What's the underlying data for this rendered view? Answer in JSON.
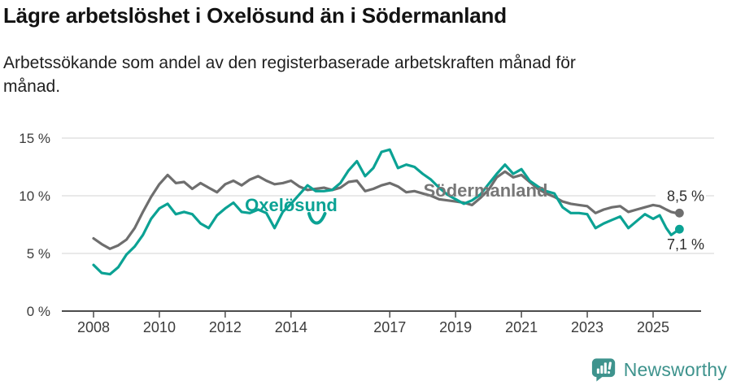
{
  "header": {
    "title": "Lägre arbetslöshet i Oxelösund än i Södermanland",
    "subtitle_line1": "Arbetssökande som andel av den registerbaserade arbetskraften månad för",
    "subtitle_line2": "månad."
  },
  "chart_data": {
    "type": "line",
    "title": "Lägre arbetslöshet i Oxelösund än i Södermanland",
    "subtitle": "Arbetssökande som andel av den registerbaserade arbetskraften månad för månad.",
    "x_unit": "year",
    "y_unit": "percent",
    "xlim": [
      2007.2,
      2026.6
    ],
    "ylim": [
      0,
      15.8
    ],
    "grid": "horizontal",
    "legend": "inline-line-labels",
    "x": [
      2008,
      2008.25,
      2008.5,
      2008.75,
      2009,
      2009.25,
      2009.5,
      2009.75,
      2010,
      2010.25,
      2010.5,
      2010.75,
      2011,
      2011.25,
      2011.5,
      2011.75,
      2012,
      2012.25,
      2012.5,
      2012.75,
      2013,
      2013.25,
      2013.5,
      2013.75,
      2014,
      2014.25,
      2014.5,
      2014.75,
      2015,
      2015.25,
      2015.5,
      2015.75,
      2016,
      2016.25,
      2016.5,
      2016.75,
      2017,
      2017.25,
      2017.5,
      2017.75,
      2018,
      2018.25,
      2018.5,
      2018.75,
      2019,
      2019.25,
      2019.5,
      2019.75,
      2020,
      2020.25,
      2020.5,
      2020.75,
      2021,
      2021.25,
      2021.5,
      2021.75,
      2022,
      2022.25,
      2022.5,
      2022.75,
      2023,
      2023.25,
      2023.5,
      2023.75,
      2024,
      2024.25,
      2024.5,
      2024.75,
      2025,
      2025.2,
      2025.4,
      2025.55,
      2025.7,
      2025.8
    ],
    "series": [
      {
        "name": "Oxelösund",
        "color": "#0BA294",
        "label_color": "#0BA294",
        "end_label": "7,1 %",
        "end_value": 7.1,
        "values": [
          4.0,
          3.3,
          3.2,
          3.8,
          4.9,
          5.6,
          6.6,
          8.0,
          8.9,
          9.3,
          8.4,
          8.6,
          8.4,
          7.6,
          7.2,
          8.3,
          8.9,
          9.4,
          8.6,
          8.5,
          8.8,
          8.5,
          7.2,
          8.6,
          9.3,
          10.1,
          10.9,
          10.4,
          10.4,
          10.5,
          11.1,
          12.2,
          13.0,
          11.7,
          12.4,
          13.8,
          14.0,
          12.4,
          12.7,
          12.5,
          11.9,
          11.4,
          10.7,
          10.1,
          9.7,
          9.3,
          9.6,
          10.1,
          11.0,
          11.9,
          12.7,
          11.9,
          12.3,
          11.3,
          10.8,
          10.4,
          10.2,
          9.0,
          8.5,
          8.5,
          8.4,
          7.2,
          7.6,
          7.9,
          8.2,
          7.2,
          7.8,
          8.4,
          8.0,
          8.3,
          7.2,
          6.6,
          6.9,
          7.1
        ]
      },
      {
        "name": "Södermanland",
        "color": "#6E6E6E",
        "label_color": "#777777",
        "end_label": "8,5 %",
        "end_value": 8.5,
        "values": [
          6.3,
          5.8,
          5.4,
          5.7,
          6.2,
          7.2,
          8.6,
          9.9,
          11.0,
          11.8,
          11.1,
          11.2,
          10.6,
          11.1,
          10.7,
          10.3,
          11.0,
          11.3,
          10.9,
          11.4,
          11.7,
          11.3,
          11.0,
          11.1,
          11.3,
          10.8,
          10.5,
          10.6,
          10.7,
          10.5,
          10.7,
          11.2,
          11.3,
          10.4,
          10.6,
          10.9,
          11.1,
          10.8,
          10.3,
          10.4,
          10.2,
          10.0,
          9.7,
          9.6,
          9.5,
          9.4,
          9.2,
          9.8,
          10.5,
          11.6,
          12.1,
          11.6,
          11.8,
          11.2,
          10.6,
          10.2,
          9.9,
          9.5,
          9.3,
          9.2,
          9.1,
          8.5,
          8.8,
          9.0,
          9.1,
          8.6,
          8.8,
          9.0,
          9.2,
          9.1,
          8.8,
          8.6,
          8.5,
          8.5
        ]
      }
    ],
    "yticks": [
      {
        "v": 0,
        "label": "0 %"
      },
      {
        "v": 5,
        "label": "5 %"
      },
      {
        "v": 10,
        "label": "10 %"
      },
      {
        "v": 15,
        "label": "15 %"
      }
    ],
    "xticks": [
      {
        "v": 2008,
        "label": "2008"
      },
      {
        "v": 2010,
        "label": "2010"
      },
      {
        "v": 2012,
        "label": "2012"
      },
      {
        "v": 2014,
        "label": "2014"
      },
      {
        "v": 2017,
        "label": "2017"
      },
      {
        "v": 2019,
        "label": "2019"
      },
      {
        "v": 2021,
        "label": "2021"
      },
      {
        "v": 2023,
        "label": "2023"
      },
      {
        "v": 2025,
        "label": "2025"
      }
    ]
  },
  "colors": {
    "accent_teal": "#0BA294",
    "line_gray": "#6E6E6E",
    "grid": "#DCDCDC",
    "axis": "#4C4C4C",
    "tick_text": "#3B3B3B",
    "end_label_text": "#2E2E2E"
  },
  "logo": {
    "name": "Newsworthy",
    "color": "#3E938D",
    "icon": "bar-chart-speech-bubble"
  }
}
